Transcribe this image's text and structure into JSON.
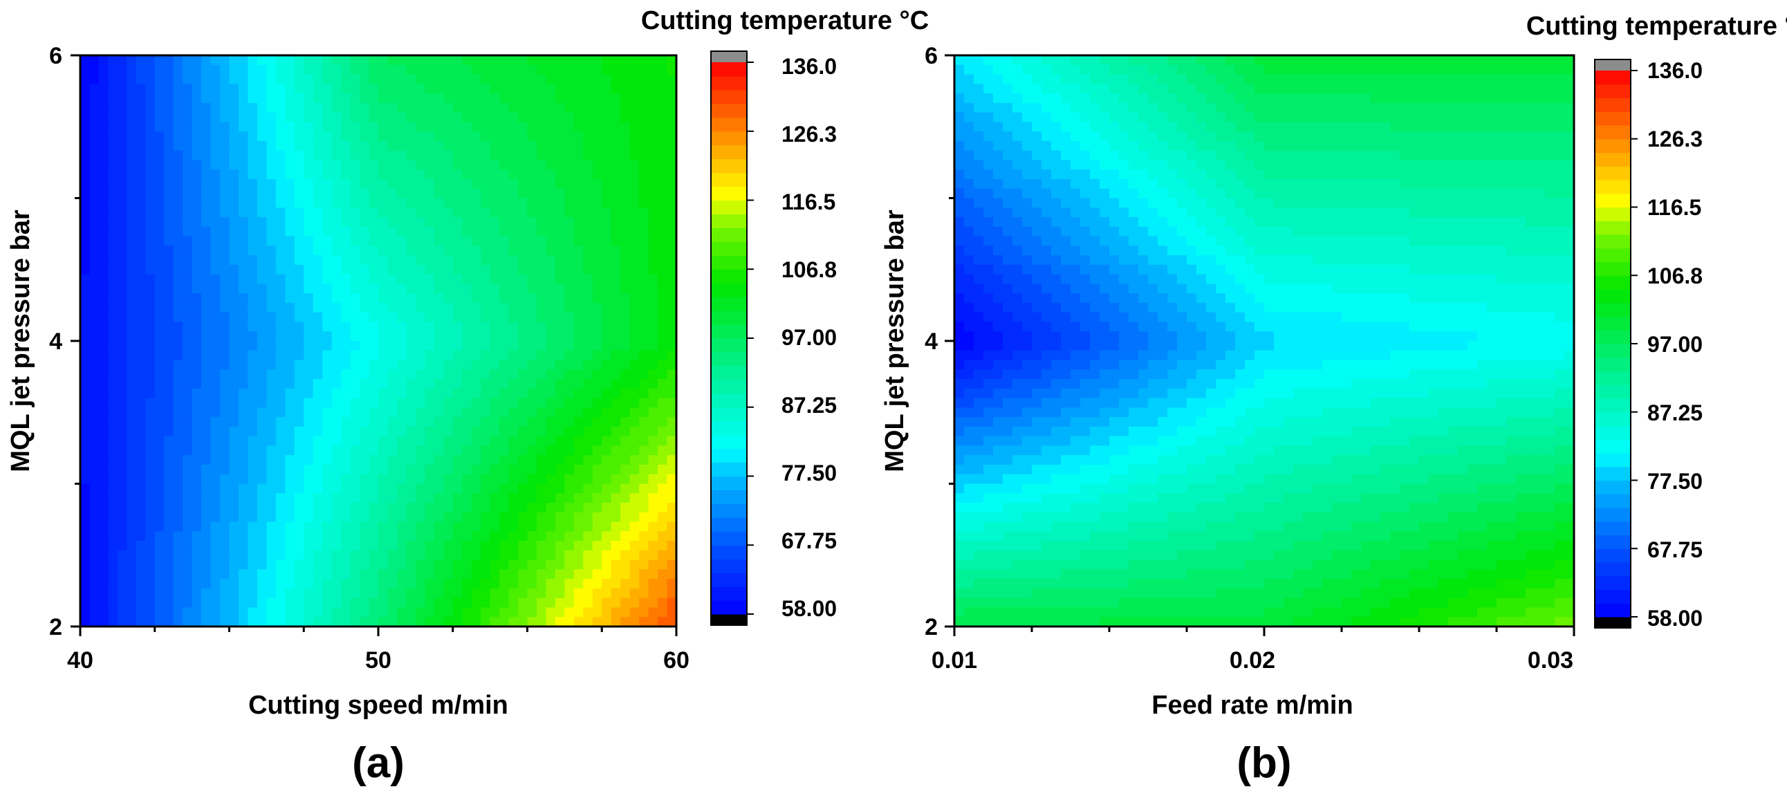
{
  "chart_data": [
    {
      "type": "heatmap",
      "subtype": "filled-contour",
      "panel_label": "(a)",
      "title": "",
      "xlabel": "Cutting speed m/min",
      "ylabel": "MQL jet pressure bar",
      "xlim": [
        40,
        60
      ],
      "ylim": [
        2,
        6
      ],
      "xticks": [
        "40",
        "50",
        "60"
      ],
      "yticks": [
        "2",
        "4",
        "6"
      ],
      "x": [
        40,
        50,
        60
      ],
      "y": [
        2,
        4,
        6
      ],
      "z_grid": [
        [
          59,
          95,
          131
        ],
        [
          60,
          83,
          104
        ],
        [
          58,
          97,
          105
        ]
      ],
      "colorbar": {
        "title": "Cutting temperature °C",
        "min": 58.0,
        "max": 136.0,
        "tick_labels": [
          "136.0",
          "126.3",
          "116.5",
          "106.8",
          "97.00",
          "87.25",
          "77.50",
          "67.75",
          "58.00"
        ]
      }
    },
    {
      "type": "heatmap",
      "subtype": "filled-contour",
      "panel_label": "(b)",
      "title": "",
      "xlabel": "Feed rate m/min",
      "ylabel": "MQL jet pressure bar",
      "xlim": [
        0.01,
        0.03
      ],
      "ylim": [
        2,
        6
      ],
      "xticks": [
        "0.01",
        "0.02",
        "0.03"
      ],
      "yticks": [
        "2",
        "4",
        "6"
      ],
      "x": [
        0.01,
        0.02,
        0.03
      ],
      "y": [
        2,
        4,
        6
      ],
      "z_grid": [
        [
          99,
          100,
          112
        ],
        [
          58,
          79,
          82
        ],
        [
          80,
          100,
          100
        ]
      ],
      "colorbar": {
        "title": "Cutting temperature °C",
        "min": 58.0,
        "max": 136.0,
        "tick_labels": [
          "136.0",
          "126.3",
          "116.5",
          "106.8",
          "97.00",
          "87.25",
          "77.50",
          "67.75",
          "58.00"
        ]
      }
    }
  ]
}
